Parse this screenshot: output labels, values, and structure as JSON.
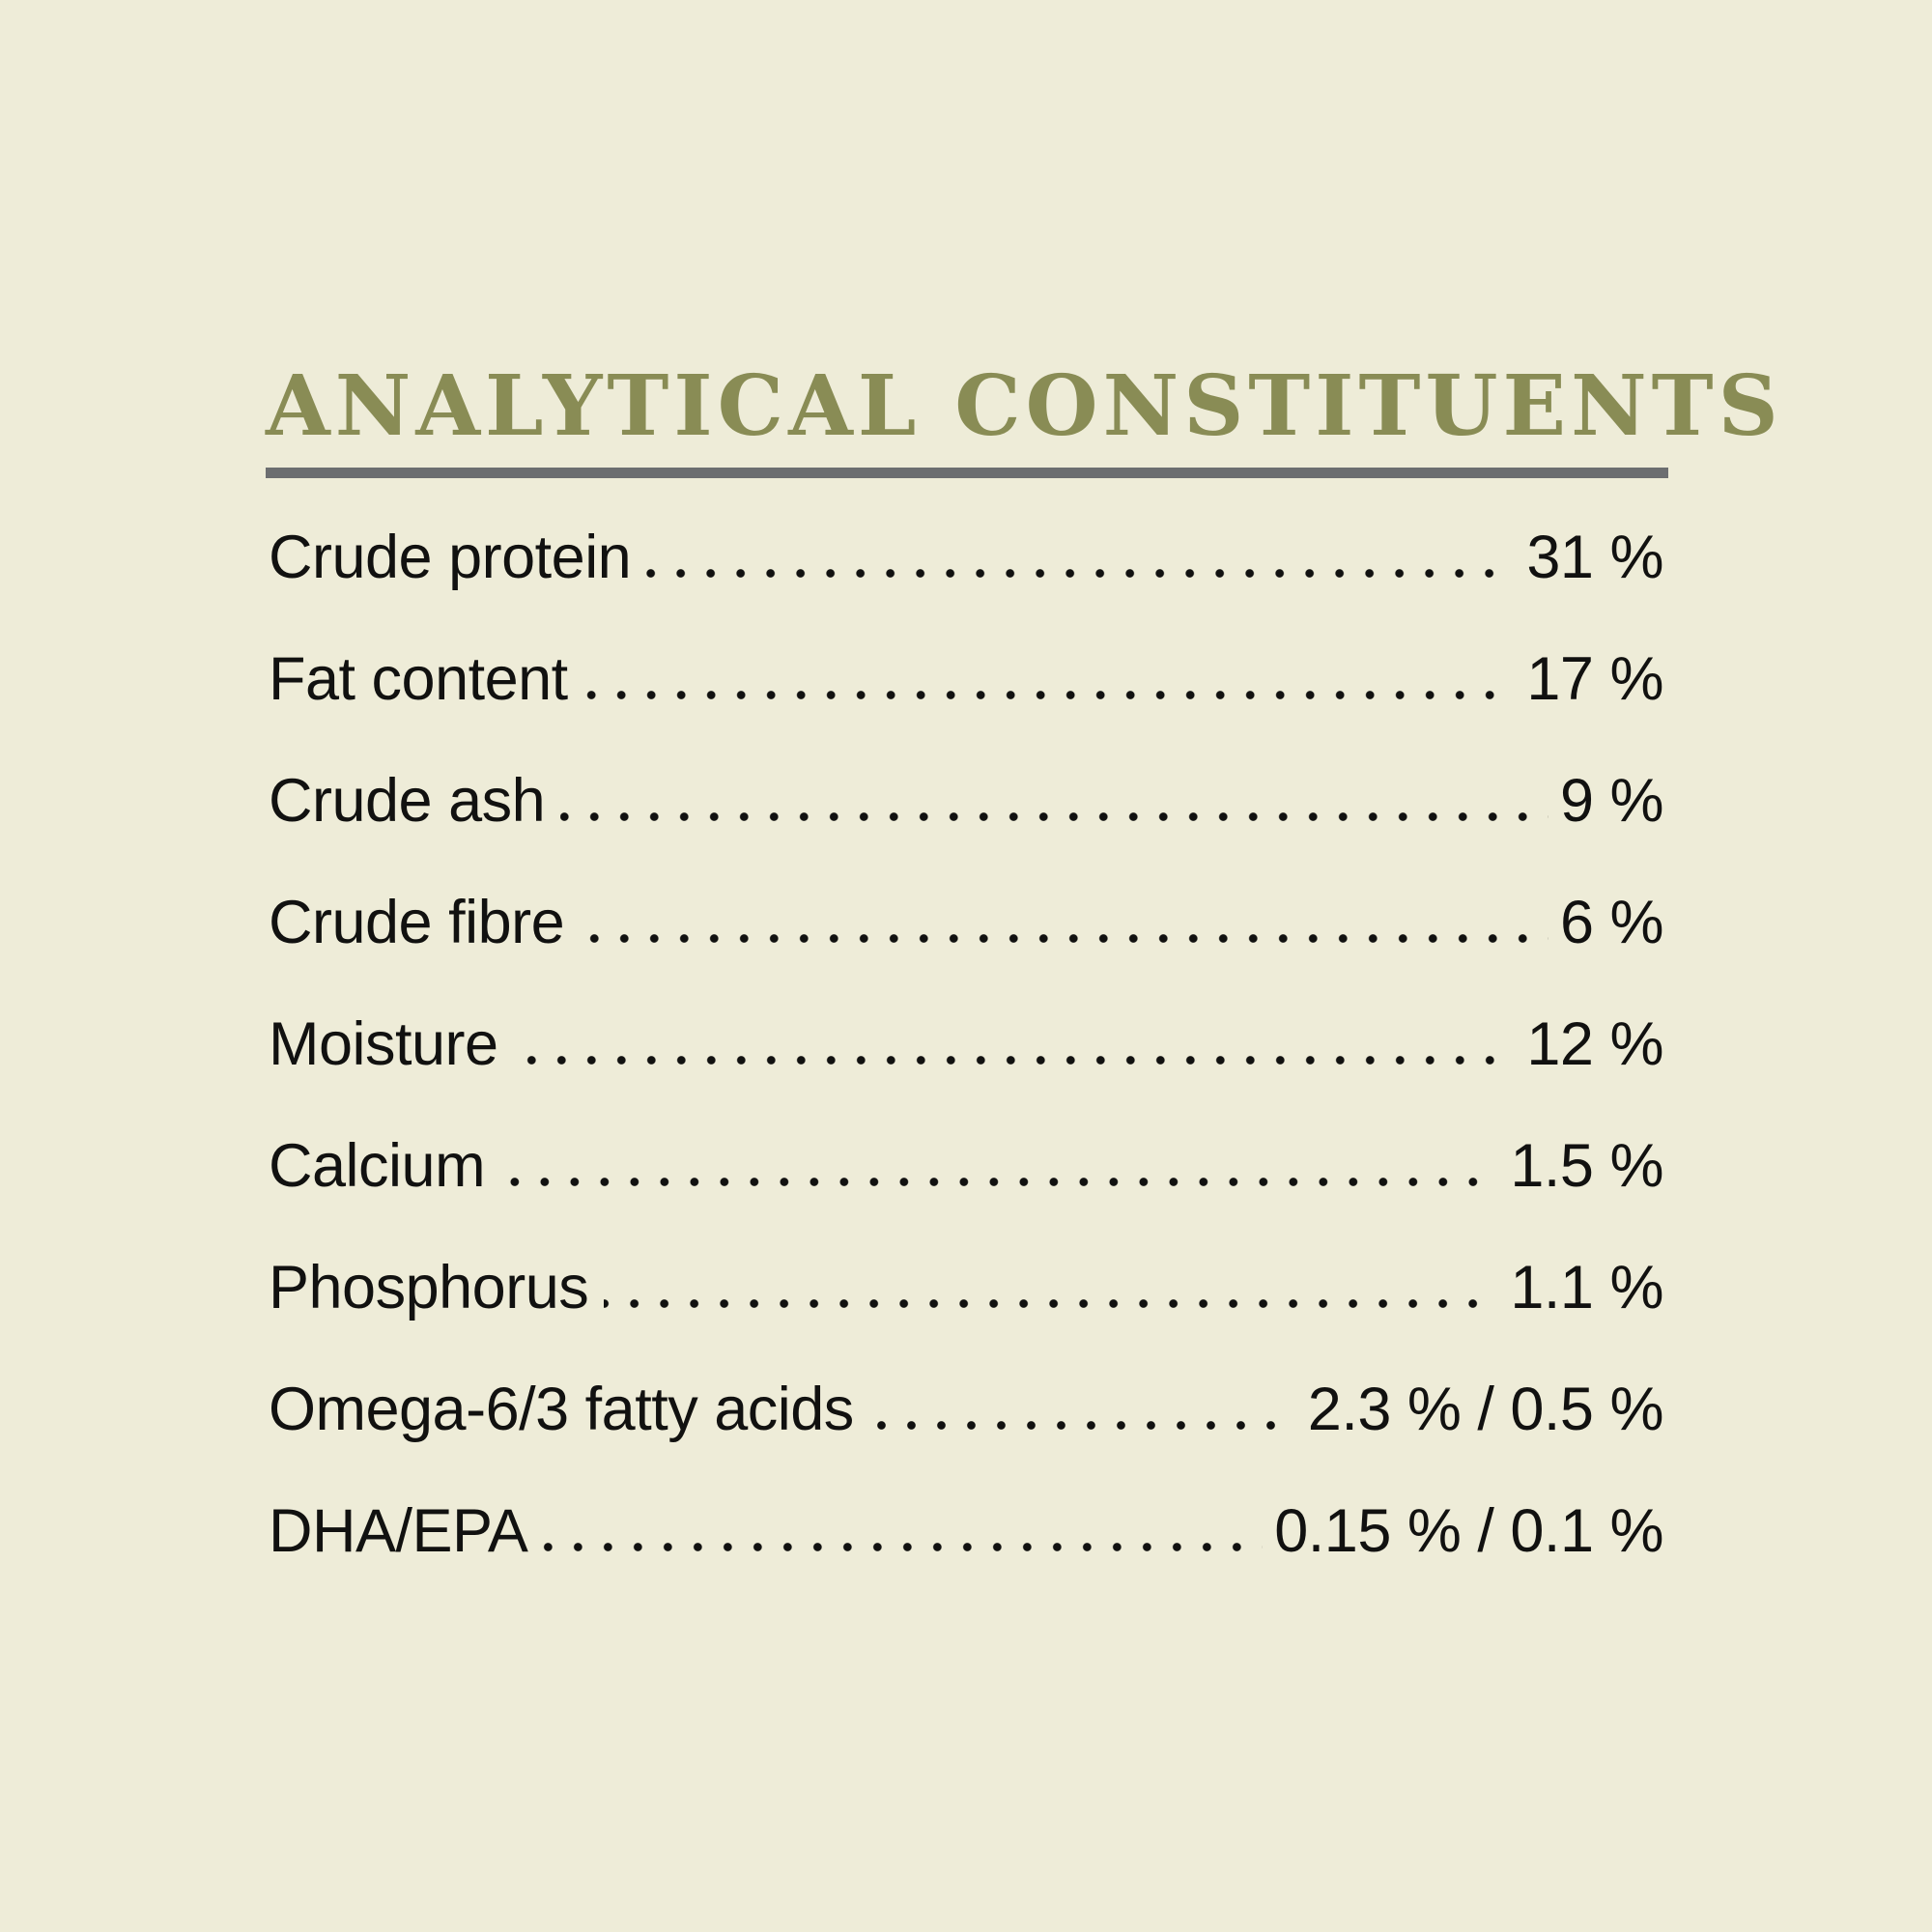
{
  "header": {
    "title": "ANALYTICAL CONSTITUENTS"
  },
  "colors": {
    "background": "#eeecd8",
    "title_accent": "#898c55",
    "divider": "#6c6e70",
    "text": "#111110"
  },
  "table": {
    "rows": [
      {
        "label": "Crude protein",
        "value": "31 %"
      },
      {
        "label": "Fat content",
        "value": "17 %"
      },
      {
        "label": "Crude ash",
        "value": "9 %"
      },
      {
        "label": "Crude fibre",
        "value": "6 %"
      },
      {
        "label": "Moisture",
        "value": "12 %"
      },
      {
        "label": "Calcium",
        "value": "1.5 %"
      },
      {
        "label": "Phosphorus",
        "value": "1.1 %"
      },
      {
        "label": "Omega-6/3 fatty acids",
        "value": "2.3 % / 0.5 %"
      },
      {
        "label": "DHA/EPA",
        "value": "0.15 % / 0.1 %"
      }
    ]
  }
}
